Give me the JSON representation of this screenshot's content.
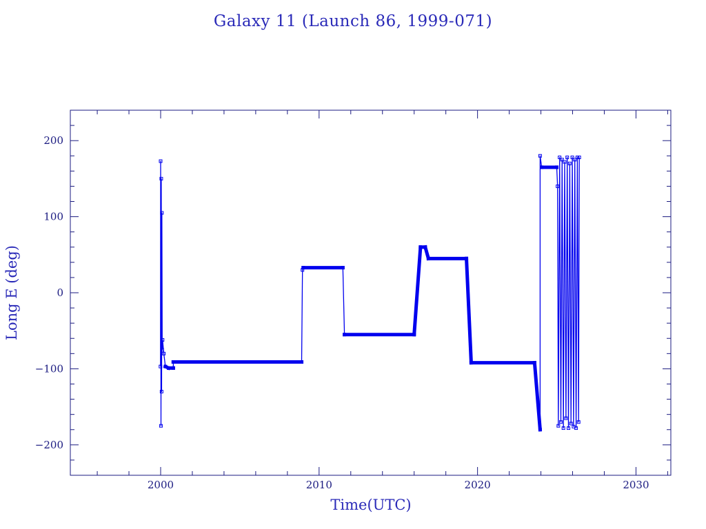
{
  "chart_data": {
    "type": "line",
    "title": "Galaxy 11 (Launch 86, 1999-071)",
    "xlabel": "Time(UTC)",
    "ylabel": "Long E (deg)",
    "xlim": [
      1994.3,
      2032.2
    ],
    "ylim": [
      -240,
      240
    ],
    "xticks": [
      2000,
      2010,
      2020,
      2030
    ],
    "yticks": [
      200,
      100,
      0,
      -100,
      -200
    ],
    "x_minor_step": 2,
    "y_minor_step": 20,
    "grid": false,
    "legend": "none",
    "colors": {
      "series": "#0000ee",
      "axes": "#1a1a80",
      "text": "#2a2ab8"
    },
    "series": [
      {
        "points": [
          [
            1999.99,
            -97
          ],
          [
            2000.0,
            173
          ],
          [
            2000.02,
            -175
          ],
          [
            2000.04,
            150
          ],
          [
            2000.06,
            -130
          ],
          [
            2000.08,
            105
          ],
          [
            2000.1,
            -75
          ],
          [
            2000.12,
            -62
          ],
          [
            2000.2,
            -80
          ],
          [
            2000.3,
            -97
          ],
          [
            2000.5,
            -99
          ],
          [
            2000.8,
            -99
          ],
          [
            2000.8,
            -91
          ],
          [
            2008.9,
            -91
          ],
          [
            2008.95,
            30
          ],
          [
            2009.0,
            33
          ],
          [
            2011.5,
            33
          ],
          [
            2011.6,
            -55
          ],
          [
            2016.0,
            -55
          ],
          [
            2016.4,
            60
          ],
          [
            2016.7,
            60
          ],
          [
            2016.9,
            45
          ],
          [
            2019.3,
            45
          ],
          [
            2019.6,
            -92
          ],
          [
            2023.6,
            -92
          ],
          [
            2023.95,
            -180
          ],
          [
            2023.95,
            180
          ],
          [
            2024.05,
            165
          ],
          [
            2025.0,
            165
          ],
          [
            2025.05,
            140
          ],
          [
            2025.1,
            -175
          ],
          [
            2025.18,
            178
          ],
          [
            2025.26,
            -170
          ],
          [
            2025.34,
            175
          ],
          [
            2025.42,
            -178
          ],
          [
            2025.5,
            172
          ],
          [
            2025.58,
            -165
          ],
          [
            2025.66,
            178
          ],
          [
            2025.74,
            -178
          ],
          [
            2025.82,
            170
          ],
          [
            2025.9,
            -172
          ],
          [
            2025.98,
            178
          ],
          [
            2026.06,
            -176
          ],
          [
            2026.14,
            175
          ],
          [
            2026.22,
            -178
          ],
          [
            2026.3,
            178
          ],
          [
            2026.38,
            -170
          ],
          [
            2026.42,
            178
          ]
        ]
      }
    ]
  }
}
